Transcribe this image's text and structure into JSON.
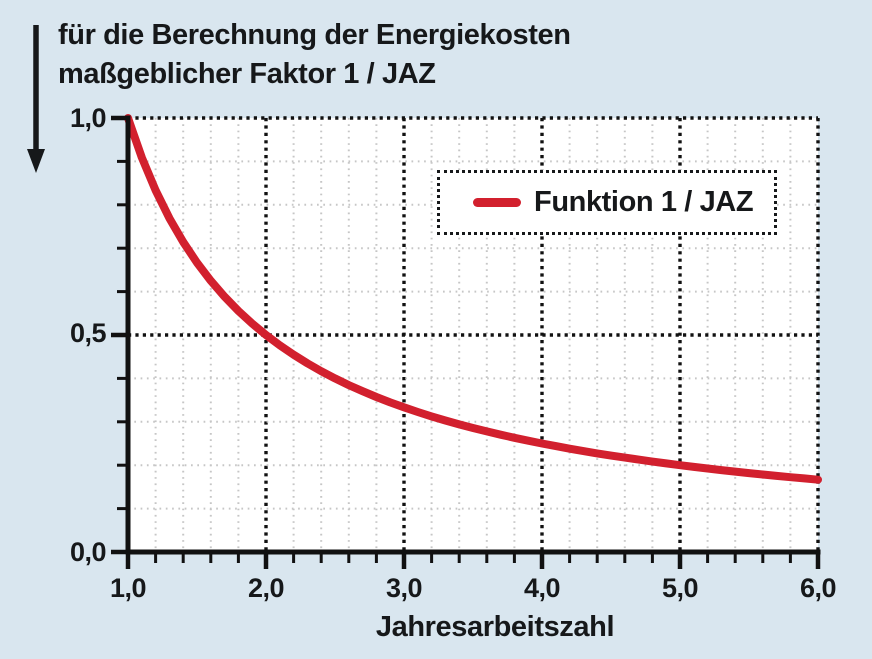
{
  "title": {
    "line1": "für die Berechnung der Energiekosten",
    "line2": "maßgeblicher Faktor 1 / JAZ"
  },
  "legend": {
    "label": "Funktion 1 / JAZ"
  },
  "axes": {
    "x_label": "Jahresarbeitszahl",
    "x_ticks": [
      "1,0",
      "2,0",
      "3,0",
      "4,0",
      "5,0",
      "6,0"
    ],
    "y_ticks": [
      "0,0",
      "0,5",
      "1,0"
    ]
  },
  "icons": {
    "down_arrow": "down-arrow-icon"
  },
  "colors": {
    "background": "#d9e6ef",
    "plot_bg": "#ffffff",
    "curve": "#d2202e",
    "text": "#16181a",
    "axis": "#111111",
    "grid_major": "#111111",
    "grid_minor": "#c6c6c6"
  },
  "chart_data": {
    "type": "line",
    "title": "für die Berechnung der Energiekosten maßgeblicher Faktor 1 / JAZ",
    "xlabel": "Jahresarbeitszahl",
    "ylabel": "Faktor 1 / JAZ",
    "xlim": [
      1.0,
      6.0
    ],
    "ylim": [
      0.0,
      1.0
    ],
    "x_major_ticks": [
      1.0,
      2.0,
      3.0,
      4.0,
      5.0,
      6.0
    ],
    "x_tick_labels": [
      "1,0",
      "2,0",
      "3,0",
      "4,0",
      "5,0",
      "6,0"
    ],
    "x_minor_step": 0.2,
    "y_major_ticks": [
      0.0,
      0.5,
      1.0
    ],
    "y_tick_labels": [
      "0,0",
      "0,5",
      "1,0"
    ],
    "y_minor_step": 0.1,
    "grid": true,
    "grid_style": "dotted, black major lines, light gray minor lines",
    "legend_position": "inside upper right",
    "series": [
      {
        "name": "Funktion 1 / JAZ",
        "formula": "y = 1 / x",
        "x": [
          1.0,
          1.1,
          1.2,
          1.3,
          1.4,
          1.5,
          1.6,
          1.7,
          1.8,
          1.9,
          2.0,
          2.1,
          2.2,
          2.3,
          2.4,
          2.5,
          2.6,
          2.7,
          2.8,
          2.9,
          3.0,
          3.1,
          3.2,
          3.3,
          3.4,
          3.5,
          3.6,
          3.7,
          3.8,
          3.9,
          4.0,
          4.1,
          4.2,
          4.3,
          4.4,
          4.5,
          4.6,
          4.7,
          4.8,
          4.9,
          5.0,
          5.1,
          5.2,
          5.3,
          5.4,
          5.5,
          5.6,
          5.7,
          5.8,
          5.9,
          6.0
        ],
        "values": [
          1.0,
          0.9091,
          0.8333,
          0.7692,
          0.7143,
          0.6667,
          0.625,
          0.5882,
          0.5556,
          0.5263,
          0.5,
          0.4762,
          0.4545,
          0.4348,
          0.4167,
          0.4,
          0.3846,
          0.3704,
          0.3571,
          0.3448,
          0.3333,
          0.3226,
          0.3125,
          0.303,
          0.2941,
          0.2857,
          0.2778,
          0.2703,
          0.2632,
          0.2564,
          0.25,
          0.2439,
          0.2381,
          0.2326,
          0.2273,
          0.2222,
          0.2174,
          0.2128,
          0.2083,
          0.2041,
          0.2,
          0.1961,
          0.1923,
          0.1887,
          0.1852,
          0.1818,
          0.1786,
          0.1754,
          0.1724,
          0.1695,
          0.1667
        ]
      }
    ]
  }
}
